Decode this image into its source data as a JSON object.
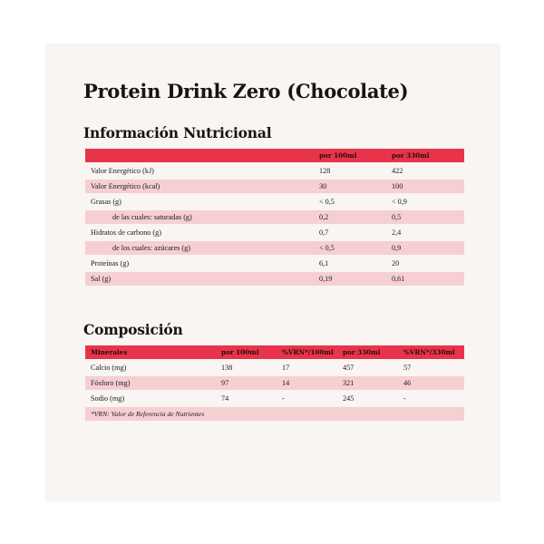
{
  "title": "Protein Drink Zero (Chocolate)",
  "nutrition": {
    "heading": "Información Nutricional",
    "columns": [
      "",
      "por 100ml",
      "por 330ml"
    ],
    "rows": [
      {
        "label": "Valor Energético (kJ)",
        "per100": "128",
        "per330": "422"
      },
      {
        "label": "Valor Energético (kcal)",
        "per100": "30",
        "per330": "100"
      },
      {
        "label": "Grasas (g)",
        "per100": "< 0,5",
        "per330": "< 0,9"
      },
      {
        "label": "de las cuales: saturadas (g)",
        "per100": "0,2",
        "per330": "0,5"
      },
      {
        "label": "Hidratos de carbono (g)",
        "per100": "0,7",
        "per330": "2,4"
      },
      {
        "label": "de los cuales: azúcares (g)",
        "per100": "< 0,5",
        "per330": "0,9"
      },
      {
        "label": "Proteínas (g)",
        "per100": "6,1",
        "per330": "20"
      },
      {
        "label": "Sal (g)",
        "per100": "0,19",
        "per330": "0,61"
      }
    ]
  },
  "composition": {
    "heading": "Composición",
    "columns": [
      "Minerales",
      "por 100ml",
      "%VRN*/100ml",
      "por 330ml",
      "%VRN*/330ml"
    ],
    "rows": [
      {
        "label": "Calcio (mg)",
        "per100": "138",
        "vrn100": "17",
        "per330": "457",
        "vrn330": "57"
      },
      {
        "label": "Fósforo (mg)",
        "per100": "97",
        "vrn100": "14",
        "per330": "321",
        "vrn330": "46"
      },
      {
        "label": "Sodio (mg)",
        "per100": "74",
        "vrn100": "-",
        "per330": "245",
        "vrn330": "-"
      }
    ],
    "footnote": "*VRN: Valor de Referencia de Nutrientes"
  },
  "colors": {
    "header_red": "#e8344a",
    "row_pink": "#f6cfd3",
    "card_bg": "#f8f5f2"
  }
}
